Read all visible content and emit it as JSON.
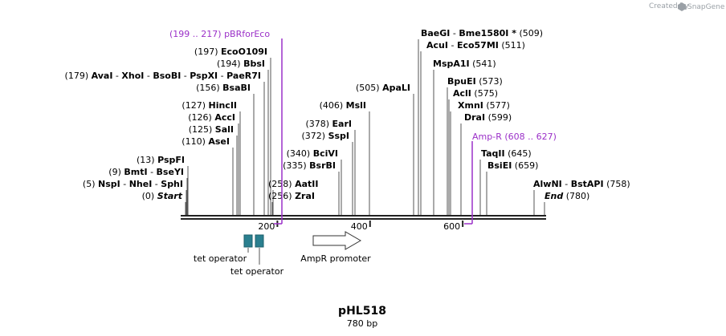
{
  "branding": {
    "created_by": "Created by",
    "app_name": "SnapGene",
    "logo_color": "#9aa0a6"
  },
  "map": {
    "name": "pHL518",
    "length_label": "780 bp",
    "total_bp": 780,
    "ticks": [
      {
        "bp": 200,
        "label": "200"
      },
      {
        "bp": 400,
        "label": "400"
      },
      {
        "bp": 600,
        "label": "600"
      }
    ],
    "colors": {
      "feature": "#9b30c8",
      "operator": "#2a7f8f",
      "backbone": "#222222",
      "site_line": "#555555"
    }
  },
  "sites": [
    {
      "pos": "(0)",
      "bp": 0,
      "names": [
        "Start"
      ],
      "style": "italic",
      "side": "left"
    },
    {
      "pos": "(5)",
      "bp": 5,
      "names": [
        "NspI",
        "NheI",
        "SphI"
      ],
      "side": "left"
    },
    {
      "pos": "(9)",
      "bp": 9,
      "names": [
        "BmtI",
        "BseYI"
      ],
      "side": "left"
    },
    {
      "pos": "(13)",
      "bp": 13,
      "names": [
        "PspFI"
      ],
      "side": "left"
    },
    {
      "pos": "(110)",
      "bp": 110,
      "names": [
        "AseI"
      ],
      "side": "left"
    },
    {
      "pos": "(125)",
      "bp": 125,
      "names": [
        "SalI"
      ],
      "side": "left"
    },
    {
      "pos": "(126)",
      "bp": 126,
      "names": [
        "AccI"
      ],
      "side": "left"
    },
    {
      "pos": "(127)",
      "bp": 127,
      "names": [
        "HincII"
      ],
      "side": "left"
    },
    {
      "pos": "(156)",
      "bp": 156,
      "names": [
        "BsaBI"
      ],
      "side": "left"
    },
    {
      "pos": "(179)",
      "bp": 179,
      "names": [
        "AvaI",
        "XhoI",
        "BsoBI",
        "PspXI",
        "PaeR7I"
      ],
      "side": "left"
    },
    {
      "pos": "(194)",
      "bp": 194,
      "names": [
        "BbsI"
      ],
      "side": "left"
    },
    {
      "pos": "(197)",
      "bp": 197,
      "names": [
        "EcoO109I"
      ],
      "side": "left"
    },
    {
      "pos": "(256)",
      "bp": 256,
      "names": [
        "ZraI"
      ],
      "side": "left"
    },
    {
      "pos": "(258)",
      "bp": 258,
      "names": [
        "AatII"
      ],
      "side": "left"
    },
    {
      "pos": "(335)",
      "bp": 335,
      "names": [
        "BsrBI"
      ],
      "side": "left"
    },
    {
      "pos": "(340)",
      "bp": 340,
      "names": [
        "BciVI"
      ],
      "side": "left"
    },
    {
      "pos": "(372)",
      "bp": 372,
      "names": [
        "SspI"
      ],
      "side": "left"
    },
    {
      "pos": "(378)",
      "bp": 378,
      "names": [
        "EarI"
      ],
      "side": "left"
    },
    {
      "pos": "(406)",
      "bp": 406,
      "names": [
        "MslI"
      ],
      "side": "left"
    },
    {
      "pos": "(505)",
      "bp": 505,
      "names": [
        "ApaLI"
      ],
      "side": "left"
    },
    {
      "pos": "(509)",
      "bp": 509,
      "names": [
        "BaeGI",
        "Bme1580I *"
      ],
      "side": "right"
    },
    {
      "pos": "(511)",
      "bp": 511,
      "names": [
        "AcuI",
        "Eco57MI"
      ],
      "side": "right"
    },
    {
      "pos": "(541)",
      "bp": 541,
      "names": [
        "MspA1I"
      ],
      "side": "right"
    },
    {
      "pos": "(573)",
      "bp": 573,
      "names": [
        "BpuEI"
      ],
      "side": "right"
    },
    {
      "pos": "(575)",
      "bp": 575,
      "names": [
        "AclI"
      ],
      "side": "right"
    },
    {
      "pos": "(577)",
      "bp": 577,
      "names": [
        "XmnI"
      ],
      "side": "right"
    },
    {
      "pos": "(599)",
      "bp": 599,
      "names": [
        "DraI"
      ],
      "side": "right"
    },
    {
      "pos": "(645)",
      "bp": 645,
      "names": [
        "TaqII"
      ],
      "side": "right"
    },
    {
      "pos": "(659)",
      "bp": 659,
      "names": [
        "BsiEI"
      ],
      "side": "right"
    },
    {
      "pos": "(758)",
      "bp": 758,
      "names": [
        "AlwNI",
        "BstAPI"
      ],
      "side": "right"
    },
    {
      "pos": "(780)",
      "bp": 780,
      "names": [
        "End"
      ],
      "style": "italic",
      "side": "right"
    }
  ],
  "primers": [
    {
      "name": "pBRforEco",
      "range": "(199 .. 217)",
      "start": 199,
      "end": 217
    },
    {
      "name": "Amp-R",
      "range": "(608 .. 627)",
      "start": 608,
      "end": 627
    }
  ],
  "features": [
    {
      "type": "operator",
      "label": "tet operator",
      "start": 135,
      "end": 155
    },
    {
      "type": "operator",
      "label": "tet operator",
      "start": 158,
      "end": 178
    },
    {
      "type": "promoter",
      "label": "AmpR promoter",
      "start": 285,
      "end": 390
    }
  ]
}
